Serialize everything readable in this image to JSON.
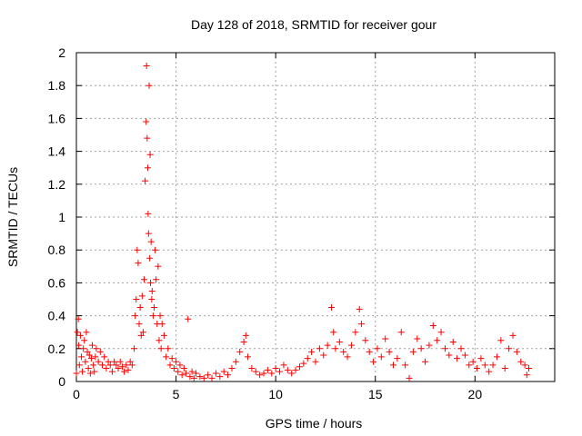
{
  "chart_data": {
    "type": "scatter",
    "title": "Day 128 of 2018, SRMTID for receiver gour",
    "xlabel": "GPS time / hours",
    "ylabel": "SRMTID / TECUs",
    "xlim": [
      0,
      24
    ],
    "ylim": [
      0,
      2
    ],
    "x_ticks": [
      0,
      5,
      10,
      15,
      20
    ],
    "y_ticks": [
      0,
      0.2,
      0.4,
      0.6,
      0.8,
      1,
      1.2,
      1.4,
      1.6,
      1.8,
      2
    ],
    "x_tick_labels": [
      "0",
      "5",
      "10",
      "15",
      "20"
    ],
    "y_tick_labels": [
      "0",
      "0.2",
      "0.4",
      "0.6",
      "0.8",
      "1",
      "1.2",
      "1.4",
      "1.6",
      "1.8",
      "2"
    ],
    "grid": true,
    "marker": "+",
    "color": "#ff0000",
    "series": [
      {
        "name": "SRMTID",
        "points": [
          [
            0.0,
            0.05
          ],
          [
            0.05,
            0.3
          ],
          [
            0.1,
            0.38
          ],
          [
            0.12,
            0.22
          ],
          [
            0.15,
            0.1
          ],
          [
            0.2,
            0.28
          ],
          [
            0.25,
            0.15
          ],
          [
            0.3,
            0.06
          ],
          [
            0.35,
            0.2
          ],
          [
            0.4,
            0.25
          ],
          [
            0.45,
            0.12
          ],
          [
            0.5,
            0.3
          ],
          [
            0.55,
            0.18
          ],
          [
            0.6,
            0.08
          ],
          [
            0.65,
            0.16
          ],
          [
            0.7,
            0.05
          ],
          [
            0.75,
            0.14
          ],
          [
            0.8,
            0.22
          ],
          [
            0.85,
            0.1
          ],
          [
            0.9,
            0.06
          ],
          [
            0.95,
            0.15
          ],
          [
            1.0,
            0.2
          ],
          [
            1.1,
            0.12
          ],
          [
            1.2,
            0.18
          ],
          [
            1.3,
            0.1
          ],
          [
            1.4,
            0.15
          ],
          [
            1.5,
            0.08
          ],
          [
            1.6,
            0.12
          ],
          [
            1.7,
            0.1
          ],
          [
            1.8,
            0.06
          ],
          [
            1.9,
            0.12
          ],
          [
            2.0,
            0.1
          ],
          [
            2.1,
            0.08
          ],
          [
            2.2,
            0.12
          ],
          [
            2.3,
            0.09
          ],
          [
            2.4,
            0.06
          ],
          [
            2.5,
            0.1
          ],
          [
            2.6,
            0.07
          ],
          [
            2.7,
            0.12
          ],
          [
            2.8,
            0.1
          ],
          [
            2.9,
            0.2
          ],
          [
            2.95,
            0.4
          ],
          [
            3.0,
            0.5
          ],
          [
            3.05,
            0.8
          ],
          [
            3.1,
            0.72
          ],
          [
            3.15,
            0.35
          ],
          [
            3.2,
            0.45
          ],
          [
            3.25,
            0.28
          ],
          [
            3.3,
            0.52
          ],
          [
            3.35,
            0.3
          ],
          [
            3.4,
            0.62
          ],
          [
            3.45,
            1.22
          ],
          [
            3.5,
            1.58
          ],
          [
            3.52,
            1.92
          ],
          [
            3.55,
            1.48
          ],
          [
            3.58,
            1.3
          ],
          [
            3.6,
            1.02
          ],
          [
            3.62,
            0.9
          ],
          [
            3.65,
            1.8
          ],
          [
            3.68,
            0.75
          ],
          [
            3.7,
            1.38
          ],
          [
            3.72,
            0.6
          ],
          [
            3.75,
            0.85
          ],
          [
            3.78,
            0.5
          ],
          [
            3.8,
            0.55
          ],
          [
            3.85,
            0.4
          ],
          [
            3.9,
            0.45
          ],
          [
            3.95,
            0.8
          ],
          [
            4.0,
            0.62
          ],
          [
            4.05,
            0.35
          ],
          [
            4.1,
            0.7
          ],
          [
            4.15,
            0.25
          ],
          [
            4.2,
            0.4
          ],
          [
            4.25,
            0.2
          ],
          [
            4.3,
            0.35
          ],
          [
            4.4,
            0.28
          ],
          [
            4.5,
            0.15
          ],
          [
            4.6,
            0.2
          ],
          [
            4.7,
            0.1
          ],
          [
            4.8,
            0.14
          ],
          [
            4.9,
            0.08
          ],
          [
            5.0,
            0.12
          ],
          [
            5.1,
            0.06
          ],
          [
            5.2,
            0.1
          ],
          [
            5.3,
            0.04
          ],
          [
            5.4,
            0.08
          ],
          [
            5.5,
            0.05
          ],
          [
            5.6,
            0.38
          ],
          [
            5.7,
            0.03
          ],
          [
            5.8,
            0.06
          ],
          [
            5.9,
            0.02
          ],
          [
            6.0,
            0.05
          ],
          [
            6.2,
            0.03
          ],
          [
            6.4,
            0.02
          ],
          [
            6.6,
            0.04
          ],
          [
            6.8,
            0.02
          ],
          [
            7.0,
            0.05
          ],
          [
            7.2,
            0.03
          ],
          [
            7.4,
            0.06
          ],
          [
            7.6,
            0.04
          ],
          [
            7.8,
            0.08
          ],
          [
            8.0,
            0.12
          ],
          [
            8.2,
            0.18
          ],
          [
            8.4,
            0.24
          ],
          [
            8.5,
            0.28
          ],
          [
            8.6,
            0.15
          ],
          [
            8.8,
            0.08
          ],
          [
            9.0,
            0.06
          ],
          [
            9.2,
            0.04
          ],
          [
            9.4,
            0.05
          ],
          [
            9.6,
            0.07
          ],
          [
            9.8,
            0.05
          ],
          [
            10.0,
            0.08
          ],
          [
            10.2,
            0.06
          ],
          [
            10.4,
            0.1
          ],
          [
            10.6,
            0.07
          ],
          [
            10.8,
            0.05
          ],
          [
            11.0,
            0.07
          ],
          [
            11.2,
            0.09
          ],
          [
            11.4,
            0.11
          ],
          [
            11.6,
            0.14
          ],
          [
            11.8,
            0.18
          ],
          [
            12.0,
            0.12
          ],
          [
            12.2,
            0.2
          ],
          [
            12.4,
            0.16
          ],
          [
            12.6,
            0.22
          ],
          [
            12.8,
            0.45
          ],
          [
            12.9,
            0.3
          ],
          [
            13.0,
            0.2
          ],
          [
            13.2,
            0.24
          ],
          [
            13.4,
            0.18
          ],
          [
            13.6,
            0.15
          ],
          [
            13.8,
            0.22
          ],
          [
            14.0,
            0.3
          ],
          [
            14.2,
            0.44
          ],
          [
            14.3,
            0.35
          ],
          [
            14.5,
            0.25
          ],
          [
            14.7,
            0.18
          ],
          [
            14.9,
            0.12
          ],
          [
            15.1,
            0.2
          ],
          [
            15.3,
            0.15
          ],
          [
            15.5,
            0.26
          ],
          [
            15.7,
            0.18
          ],
          [
            15.9,
            0.1
          ],
          [
            16.1,
            0.14
          ],
          [
            16.3,
            0.3
          ],
          [
            16.5,
            0.1
          ],
          [
            16.7,
            0.02
          ],
          [
            16.9,
            0.18
          ],
          [
            17.1,
            0.26
          ],
          [
            17.3,
            0.2
          ],
          [
            17.5,
            0.12
          ],
          [
            17.7,
            0.22
          ],
          [
            17.9,
            0.34
          ],
          [
            18.1,
            0.25
          ],
          [
            18.3,
            0.3
          ],
          [
            18.5,
            0.2
          ],
          [
            18.7,
            0.16
          ],
          [
            18.9,
            0.24
          ],
          [
            19.1,
            0.14
          ],
          [
            19.3,
            0.2
          ],
          [
            19.5,
            0.16
          ],
          [
            19.7,
            0.1
          ],
          [
            19.9,
            0.12
          ],
          [
            20.1,
            0.08
          ],
          [
            20.3,
            0.14
          ],
          [
            20.5,
            0.1
          ],
          [
            20.7,
            0.06
          ],
          [
            20.9,
            0.1
          ],
          [
            21.1,
            0.15
          ],
          [
            21.3,
            0.25
          ],
          [
            21.5,
            0.08
          ],
          [
            21.7,
            0.2
          ],
          [
            21.9,
            0.28
          ],
          [
            22.1,
            0.18
          ],
          [
            22.3,
            0.12
          ],
          [
            22.5,
            0.1
          ],
          [
            22.6,
            0.04
          ],
          [
            22.7,
            0.08
          ]
        ]
      }
    ]
  }
}
